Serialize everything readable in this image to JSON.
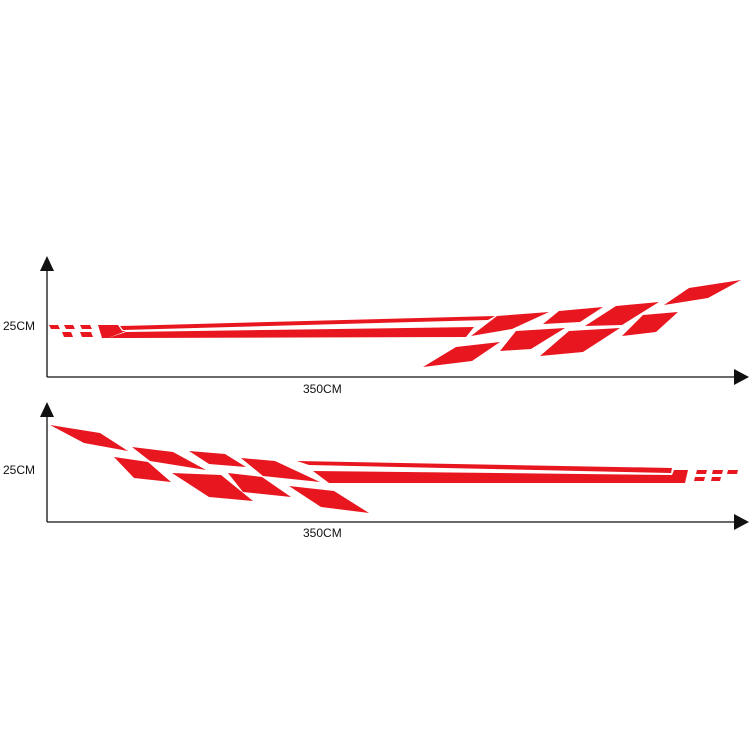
{
  "colors": {
    "decal": "#e8171f",
    "axis": "#111111"
  },
  "panels": [
    {
      "height_label": "25CM",
      "length_label": "350CM",
      "orientation": "stripes-left, diamonds-right"
    },
    {
      "height_label": "25CM",
      "length_label": "350CM",
      "orientation": "diamonds-left, stripes-right"
    }
  ]
}
